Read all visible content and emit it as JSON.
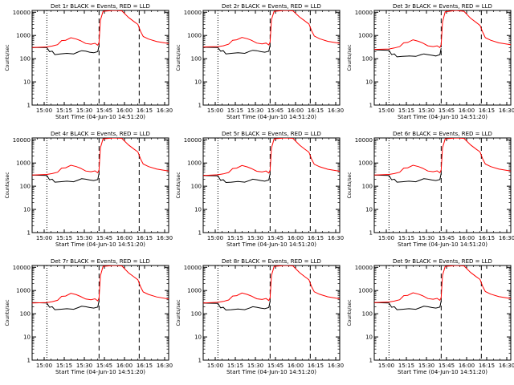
{
  "chart_data": {
    "type": "line",
    "xlabel": "Start Time (04-Jun-10 14:51:20)",
    "ylabel": "Counts/sec",
    "y_scale": "log",
    "ylim": [
      1,
      12000
    ],
    "xlim": [
      "14:51",
      "16:33"
    ],
    "x_ticks": [
      "15:00",
      "15:15",
      "15:30",
      "15:45",
      "16:00",
      "16:15",
      "16:30"
    ],
    "y_ticks": [
      "1",
      "10",
      "100",
      "1000",
      "10000"
    ],
    "colors": {
      "events": "#000000",
      "lld": "#ff0000",
      "axes": "#000000"
    },
    "grid": false,
    "legend": "in title",
    "markers": {
      "dotted_lines": [
        "15:02"
      ],
      "dashed_lines": [
        "15:41",
        "16:11"
      ]
    },
    "panels": [
      {
        "title": "Det 1r BLACK = Events, RED = LLD",
        "series": [
          {
            "name": "Events",
            "color": "#000000",
            "x": [
              "14:51",
              "15:02",
              "15:04",
              "15:06",
              "15:08",
              "15:12",
              "15:17",
              "15:22",
              "15:26",
              "15:28",
              "15:31",
              "15:34",
              "15:37",
              "15:40",
              "15:41"
            ],
            "y": [
              300,
              300,
              200,
              210,
              150,
              160,
              170,
              160,
              200,
              220,
              210,
              190,
              180,
              200,
              360
            ]
          },
          {
            "name": "LLD",
            "color": "#ff0000",
            "x": [
              "14:51",
              "15:02",
              "15:06",
              "15:10",
              "15:13",
              "15:16",
              "15:20",
              "15:24",
              "15:27",
              "15:31",
              "15:35",
              "15:38",
              "15:40",
              "15:41",
              "15:42",
              "15:44",
              "15:52",
              "15:58",
              "16:03",
              "16:07",
              "16:10",
              "16:12",
              "16:14",
              "16:18",
              "16:24",
              "16:33"
            ],
            "y": [
              300,
              320,
              350,
              400,
              600,
              620,
              800,
              700,
              600,
              450,
              420,
              460,
              380,
              500,
              4500,
              11000,
              12000,
              11500,
              6000,
              4000,
              3000,
              1500,
              900,
              700,
              550,
              450
            ]
          }
        ]
      },
      {
        "title": "Det 2r BLACK = Events, RED = LLD",
        "series": [
          {
            "name": "Events",
            "color": "#000000",
            "x": [
              "14:51",
              "15:02",
              "15:04",
              "15:06",
              "15:08",
              "15:12",
              "15:17",
              "15:22",
              "15:26",
              "15:28",
              "15:31",
              "15:34",
              "15:37",
              "15:40",
              "15:41"
            ],
            "y": [
              310,
              300,
              210,
              220,
              160,
              170,
              180,
              170,
              210,
              230,
              220,
              200,
              190,
              210,
              380
            ]
          },
          {
            "name": "LLD",
            "color": "#ff0000",
            "x": [
              "14:51",
              "15:02",
              "15:06",
              "15:10",
              "15:13",
              "15:16",
              "15:20",
              "15:24",
              "15:27",
              "15:31",
              "15:35",
              "15:38",
              "15:40",
              "15:41",
              "15:42",
              "15:44",
              "15:52",
              "15:58",
              "16:03",
              "16:07",
              "16:10",
              "16:12",
              "16:14",
              "16:18",
              "16:24",
              "16:33"
            ],
            "y": [
              320,
              330,
              360,
              420,
              620,
              650,
              820,
              720,
              620,
              470,
              430,
              470,
              390,
              520,
              4800,
              11000,
              12000,
              11500,
              6200,
              4200,
              3100,
              1600,
              950,
              720,
              560,
              460
            ]
          }
        ]
      },
      {
        "title": "Det 3r BLACK = Events, RED = LLD",
        "series": [
          {
            "name": "Events",
            "color": "#000000",
            "x": [
              "14:51",
              "15:02",
              "15:04",
              "15:06",
              "15:08",
              "15:12",
              "15:17",
              "15:22",
              "15:26",
              "15:28",
              "15:31",
              "15:34",
              "15:37",
              "15:40",
              "15:41"
            ],
            "y": [
              240,
              230,
              150,
              160,
              120,
              125,
              130,
              125,
              150,
              160,
              150,
              140,
              130,
              150,
              280
            ]
          },
          {
            "name": "LLD",
            "color": "#ff0000",
            "x": [
              "14:51",
              "15:02",
              "15:06",
              "15:10",
              "15:13",
              "15:16",
              "15:20",
              "15:24",
              "15:27",
              "15:31",
              "15:35",
              "15:38",
              "15:40",
              "15:41",
              "15:42",
              "15:44",
              "15:52",
              "15:58",
              "16:03",
              "16:07",
              "16:10",
              "16:12",
              "16:14",
              "16:18",
              "16:24",
              "16:33"
            ],
            "y": [
              250,
              260,
              290,
              330,
              480,
              500,
              650,
              560,
              480,
              360,
              330,
              360,
              300,
              400,
              3800,
              10500,
              12000,
              11000,
              5500,
              3700,
              2700,
              1400,
              800,
              620,
              480,
              400
            ]
          }
        ]
      },
      {
        "title": "Det 4r BLACK = Events, RED = LLD",
        "series": [
          {
            "name": "Events",
            "color": "#000000",
            "x": [
              "14:51",
              "15:02",
              "15:04",
              "15:06",
              "15:08",
              "15:12",
              "15:17",
              "15:22",
              "15:26",
              "15:28",
              "15:31",
              "15:34",
              "15:37",
              "15:40",
              "15:41"
            ],
            "y": [
              300,
              290,
              190,
              200,
              150,
              155,
              165,
              155,
              190,
              210,
              200,
              185,
              175,
              195,
              350
            ]
          },
          {
            "name": "LLD",
            "color": "#ff0000",
            "x": [
              "14:51",
              "15:02",
              "15:06",
              "15:10",
              "15:13",
              "15:16",
              "15:20",
              "15:24",
              "15:27",
              "15:31",
              "15:35",
              "15:38",
              "15:40",
              "15:41",
              "15:42",
              "15:44",
              "15:52",
              "15:58",
              "16:03",
              "16:07",
              "16:10",
              "16:12",
              "16:14",
              "16:18",
              "16:24",
              "16:33"
            ],
            "y": [
              300,
              320,
              350,
              400,
              600,
              620,
              800,
              700,
              600,
              450,
              420,
              460,
              380,
              500,
              4500,
              11000,
              12000,
              11500,
              6000,
              4000,
              3000,
              1500,
              900,
              700,
              550,
              450
            ]
          }
        ]
      },
      {
        "title": "Det 5r BLACK = Events, RED = LLD",
        "series": [
          {
            "name": "Events",
            "color": "#000000",
            "x": [
              "14:51",
              "15:02",
              "15:04",
              "15:06",
              "15:08",
              "15:12",
              "15:17",
              "15:22",
              "15:26",
              "15:28",
              "15:31",
              "15:34",
              "15:37",
              "15:40",
              "15:41"
            ],
            "y": [
              290,
              280,
              180,
              190,
              145,
              150,
              160,
              150,
              180,
              200,
              190,
              175,
              165,
              185,
              340
            ]
          },
          {
            "name": "LLD",
            "color": "#ff0000",
            "x": [
              "14:51",
              "15:02",
              "15:06",
              "15:10",
              "15:13",
              "15:16",
              "15:20",
              "15:24",
              "15:27",
              "15:31",
              "15:35",
              "15:38",
              "15:40",
              "15:41",
              "15:42",
              "15:44",
              "15:52",
              "15:58",
              "16:03",
              "16:07",
              "16:10",
              "16:12",
              "16:14",
              "16:18",
              "16:24",
              "16:33"
            ],
            "y": [
              290,
              310,
              340,
              390,
              580,
              600,
              780,
              680,
              580,
              440,
              410,
              450,
              370,
              480,
              4400,
              11000,
              12000,
              11500,
              5900,
              3900,
              2900,
              1450,
              880,
              690,
              540,
              440
            ]
          }
        ]
      },
      {
        "title": "Det 6r BLACK = Events, RED = LLD",
        "series": [
          {
            "name": "Events",
            "color": "#000000",
            "x": [
              "14:51",
              "15:02",
              "15:04",
              "15:06",
              "15:08",
              "15:12",
              "15:17",
              "15:22",
              "15:26",
              "15:28",
              "15:31",
              "15:34",
              "15:37",
              "15:40",
              "15:41"
            ],
            "y": [
              300,
              290,
              190,
              200,
              150,
              155,
              165,
              155,
              190,
              210,
              200,
              185,
              175,
              195,
              350
            ]
          },
          {
            "name": "LLD",
            "color": "#ff0000",
            "x": [
              "14:51",
              "15:02",
              "15:06",
              "15:10",
              "15:13",
              "15:16",
              "15:20",
              "15:24",
              "15:27",
              "15:31",
              "15:35",
              "15:38",
              "15:40",
              "15:41",
              "15:42",
              "15:44",
              "15:52",
              "15:58",
              "16:03",
              "16:07",
              "16:10",
              "16:12",
              "16:14",
              "16:18",
              "16:24",
              "16:33"
            ],
            "y": [
              300,
              320,
              350,
              400,
              600,
              620,
              800,
              700,
              600,
              450,
              420,
              460,
              380,
              500,
              4500,
              11000,
              12000,
              11500,
              6000,
              4000,
              3000,
              1500,
              900,
              700,
              550,
              450
            ]
          }
        ]
      },
      {
        "title": "Det 7r BLACK = Events, RED = LLD",
        "series": [
          {
            "name": "Events",
            "color": "#000000",
            "x": [
              "14:51",
              "15:02",
              "15:04",
              "15:06",
              "15:08",
              "15:12",
              "15:17",
              "15:22",
              "15:26",
              "15:28",
              "15:31",
              "15:34",
              "15:37",
              "15:40",
              "15:41"
            ],
            "y": [
              300,
              290,
              190,
              200,
              150,
              155,
              165,
              155,
              190,
              210,
              200,
              185,
              175,
              195,
              350
            ]
          },
          {
            "name": "LLD",
            "color": "#ff0000",
            "x": [
              "14:51",
              "15:02",
              "15:06",
              "15:10",
              "15:13",
              "15:16",
              "15:20",
              "15:24",
              "15:27",
              "15:31",
              "15:35",
              "15:38",
              "15:40",
              "15:41",
              "15:42",
              "15:44",
              "15:52",
              "15:58",
              "16:03",
              "16:07",
              "16:10",
              "16:12",
              "16:14",
              "16:18",
              "16:24",
              "16:33"
            ],
            "y": [
              290,
              300,
              330,
              380,
              560,
              580,
              760,
              660,
              560,
              430,
              400,
              440,
              360,
              470,
              4300,
              11000,
              12000,
              11500,
              5800,
              3900,
              2900,
              1450,
              870,
              680,
              530,
              430
            ]
          }
        ]
      },
      {
        "title": "Det 8r BLACK = Events, RED = LLD",
        "series": [
          {
            "name": "Events",
            "color": "#000000",
            "x": [
              "14:51",
              "15:02",
              "15:04",
              "15:06",
              "15:08",
              "15:12",
              "15:17",
              "15:22",
              "15:26",
              "15:28",
              "15:31",
              "15:34",
              "15:37",
              "15:40",
              "15:41"
            ],
            "y": [
              290,
              280,
              180,
              190,
              145,
              150,
              160,
              150,
              180,
              200,
              190,
              175,
              165,
              185,
              340
            ]
          },
          {
            "name": "LLD",
            "color": "#ff0000",
            "x": [
              "14:51",
              "15:02",
              "15:06",
              "15:10",
              "15:13",
              "15:16",
              "15:20",
              "15:24",
              "15:27",
              "15:31",
              "15:35",
              "15:38",
              "15:40",
              "15:41",
              "15:42",
              "15:44",
              "15:52",
              "15:58",
              "16:03",
              "16:07",
              "16:10",
              "16:12",
              "16:14",
              "16:18",
              "16:24",
              "16:33"
            ],
            "y": [
              290,
              310,
              340,
              390,
              580,
              600,
              780,
              680,
              580,
              440,
              410,
              450,
              370,
              480,
              4400,
              11000,
              12000,
              11500,
              5900,
              3900,
              2900,
              1450,
              880,
              690,
              540,
              440
            ]
          }
        ]
      },
      {
        "title": "Det 9r BLACK = Events, RED = LLD",
        "series": [
          {
            "name": "Events",
            "color": "#000000",
            "x": [
              "14:51",
              "15:02",
              "15:04",
              "15:06",
              "15:08",
              "15:12",
              "15:17",
              "15:22",
              "15:26",
              "15:28",
              "15:31",
              "15:34",
              "15:37",
              "15:40",
              "15:41"
            ],
            "y": [
              300,
              290,
              190,
              200,
              150,
              155,
              165,
              155,
              190,
              210,
              200,
              185,
              175,
              195,
              350
            ]
          },
          {
            "name": "LLD",
            "color": "#ff0000",
            "x": [
              "14:51",
              "15:02",
              "15:06",
              "15:10",
              "15:13",
              "15:16",
              "15:20",
              "15:24",
              "15:27",
              "15:31",
              "15:35",
              "15:38",
              "15:40",
              "15:41",
              "15:42",
              "15:44",
              "15:52",
              "15:58",
              "16:03",
              "16:07",
              "16:10",
              "16:12",
              "16:14",
              "16:18",
              "16:24",
              "16:33"
            ],
            "y": [
              300,
              320,
              350,
              400,
              600,
              620,
              800,
              700,
              600,
              450,
              420,
              460,
              380,
              500,
              4500,
              11000,
              12000,
              11500,
              6000,
              4000,
              3000,
              1500,
              900,
              700,
              550,
              450
            ]
          }
        ]
      }
    ]
  }
}
